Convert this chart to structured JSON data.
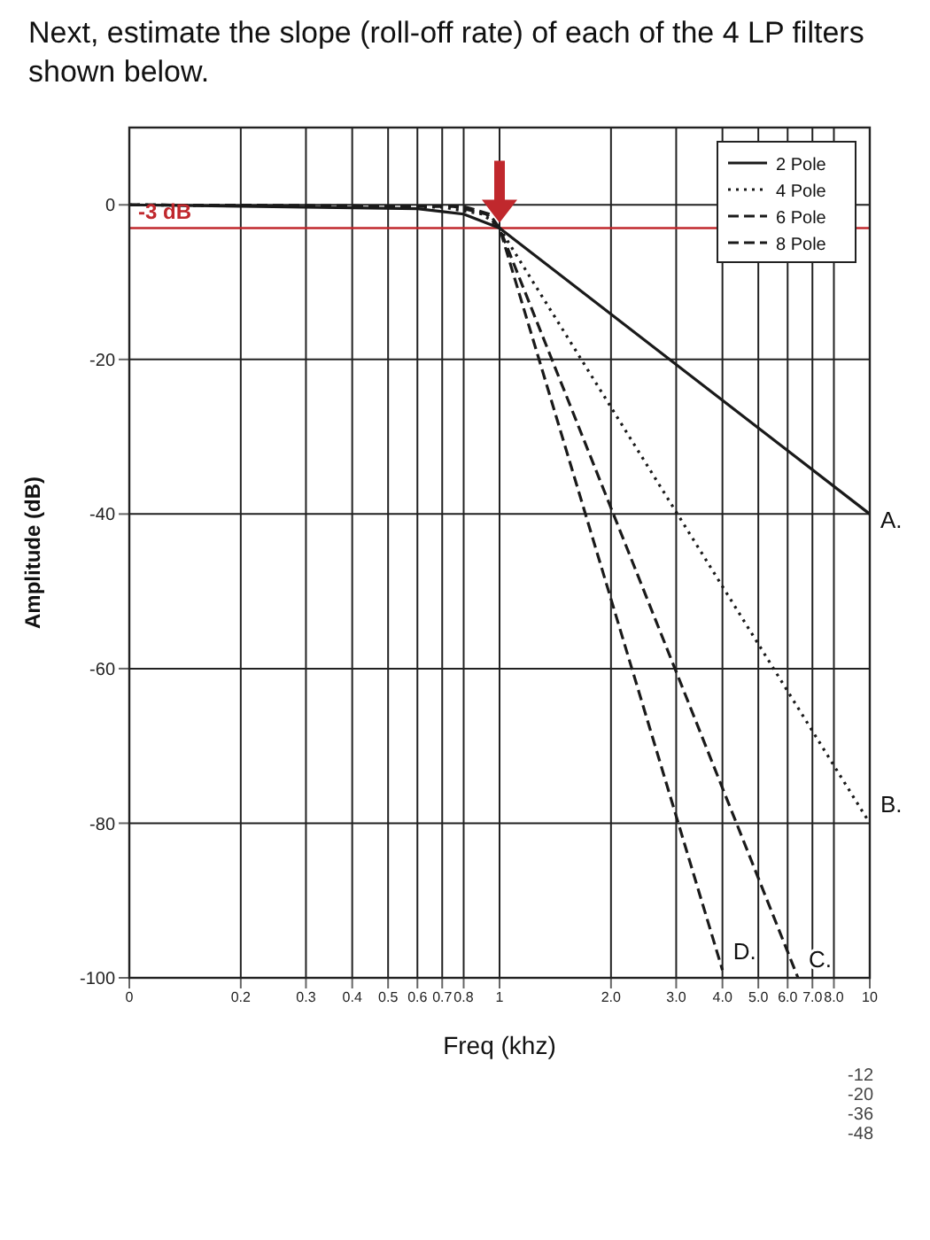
{
  "chart_data": {
    "type": "line",
    "title": "Next, estimate the slope (roll-off rate) of each of the 4 LP filters shown below.",
    "xlabel": "Freq (khz)",
    "ylabel": "Amplitude (dB)",
    "log": "x",
    "xlim": [
      0.1,
      10
    ],
    "xticks": [
      {
        "value": 0.1,
        "label": "0"
      },
      0.2,
      0.3,
      0.4,
      0.5,
      0.6,
      0.7,
      0.8,
      1,
      {
        "value": 2,
        "label": "2.0"
      },
      {
        "value": 3,
        "label": "3.0"
      },
      {
        "value": 4,
        "label": "4.0"
      },
      {
        "value": 5,
        "label": "5.0"
      },
      {
        "value": 6,
        "label": "6.0"
      },
      {
        "value": 7,
        "label": "7.0"
      },
      {
        "value": 8,
        "label": "8.0"
      },
      10
    ],
    "ylim": [
      -100,
      10
    ],
    "yticks": [
      -100,
      -80,
      -60,
      -40,
      -20,
      0
    ],
    "grid": true,
    "legend": "top right",
    "marker": "none",
    "series": [
      {
        "name": "2 Pole",
        "color": "#1a1a1a",
        "line_style": "solid",
        "x": [
          0.1,
          0.6,
          0.8,
          1,
          10
        ],
        "values": [
          0,
          -0.5,
          -1.2,
          -3,
          -40
        ]
      },
      {
        "name": "4 Pole",
        "color": "#1a1a1a",
        "line_style": "dotted",
        "x": [
          0.1,
          0.7,
          0.9,
          1,
          10
        ],
        "values": [
          0,
          -0.3,
          -1.2,
          -3,
          -80
        ]
      },
      {
        "name": "6 Pole",
        "color": "#1a1a1a",
        "line_style": "dashed",
        "x": [
          0.1,
          0.75,
          0.92,
          1,
          6.4
        ],
        "values": [
          0,
          -0.2,
          -1.2,
          -3,
          -100
        ]
      },
      {
        "name": "8 Pole",
        "color": "#1a1a1a",
        "line_style": "dashed",
        "x": [
          0.1,
          0.8,
          0.94,
          1,
          4
        ],
        "values": [
          0,
          -0.2,
          -1.2,
          -3,
          -99
        ]
      }
    ],
    "ref_lines": [
      {
        "axis": "y",
        "value": -3,
        "label": "-3 dB",
        "color": "#c0282d"
      }
    ],
    "annotations": [
      "A.",
      "B.",
      "C.",
      "D.",
      "-12",
      "-20",
      "-36",
      "-48"
    ]
  }
}
